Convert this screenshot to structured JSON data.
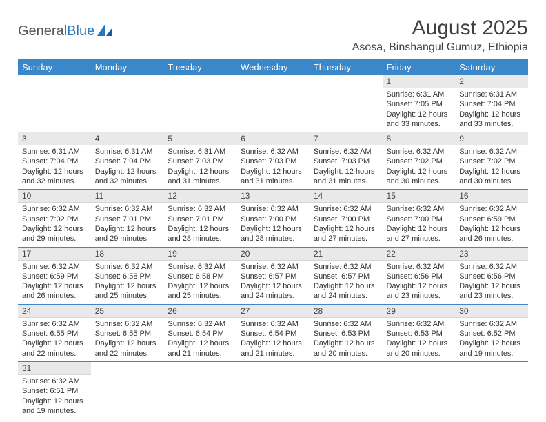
{
  "brand": {
    "name1": "General",
    "name2": "Blue"
  },
  "title": "August 2025",
  "location": "Asosa, Binshangul Gumuz, Ethiopia",
  "colors": {
    "header_bg": "#3a87c9",
    "header_text": "#ffffff",
    "daynum_bg": "#e9e9e9",
    "row_border": "#3a87c9",
    "text": "#333333",
    "brand_blue": "#2876c0"
  },
  "typography": {
    "body_pt": 11,
    "title_pt": 30,
    "location_pt": 16,
    "th_pt": 13
  },
  "weekdays": [
    "Sunday",
    "Monday",
    "Tuesday",
    "Wednesday",
    "Thursday",
    "Friday",
    "Saturday"
  ],
  "weeks": [
    [
      null,
      null,
      null,
      null,
      null,
      {
        "n": "1",
        "sr": "Sunrise: 6:31 AM",
        "ss": "Sunset: 7:05 PM",
        "d1": "Daylight: 12 hours",
        "d2": "and 33 minutes."
      },
      {
        "n": "2",
        "sr": "Sunrise: 6:31 AM",
        "ss": "Sunset: 7:04 PM",
        "d1": "Daylight: 12 hours",
        "d2": "and 33 minutes."
      }
    ],
    [
      {
        "n": "3",
        "sr": "Sunrise: 6:31 AM",
        "ss": "Sunset: 7:04 PM",
        "d1": "Daylight: 12 hours",
        "d2": "and 32 minutes."
      },
      {
        "n": "4",
        "sr": "Sunrise: 6:31 AM",
        "ss": "Sunset: 7:04 PM",
        "d1": "Daylight: 12 hours",
        "d2": "and 32 minutes."
      },
      {
        "n": "5",
        "sr": "Sunrise: 6:31 AM",
        "ss": "Sunset: 7:03 PM",
        "d1": "Daylight: 12 hours",
        "d2": "and 31 minutes."
      },
      {
        "n": "6",
        "sr": "Sunrise: 6:32 AM",
        "ss": "Sunset: 7:03 PM",
        "d1": "Daylight: 12 hours",
        "d2": "and 31 minutes."
      },
      {
        "n": "7",
        "sr": "Sunrise: 6:32 AM",
        "ss": "Sunset: 7:03 PM",
        "d1": "Daylight: 12 hours",
        "d2": "and 31 minutes."
      },
      {
        "n": "8",
        "sr": "Sunrise: 6:32 AM",
        "ss": "Sunset: 7:02 PM",
        "d1": "Daylight: 12 hours",
        "d2": "and 30 minutes."
      },
      {
        "n": "9",
        "sr": "Sunrise: 6:32 AM",
        "ss": "Sunset: 7:02 PM",
        "d1": "Daylight: 12 hours",
        "d2": "and 30 minutes."
      }
    ],
    [
      {
        "n": "10",
        "sr": "Sunrise: 6:32 AM",
        "ss": "Sunset: 7:02 PM",
        "d1": "Daylight: 12 hours",
        "d2": "and 29 minutes."
      },
      {
        "n": "11",
        "sr": "Sunrise: 6:32 AM",
        "ss": "Sunset: 7:01 PM",
        "d1": "Daylight: 12 hours",
        "d2": "and 29 minutes."
      },
      {
        "n": "12",
        "sr": "Sunrise: 6:32 AM",
        "ss": "Sunset: 7:01 PM",
        "d1": "Daylight: 12 hours",
        "d2": "and 28 minutes."
      },
      {
        "n": "13",
        "sr": "Sunrise: 6:32 AM",
        "ss": "Sunset: 7:00 PM",
        "d1": "Daylight: 12 hours",
        "d2": "and 28 minutes."
      },
      {
        "n": "14",
        "sr": "Sunrise: 6:32 AM",
        "ss": "Sunset: 7:00 PM",
        "d1": "Daylight: 12 hours",
        "d2": "and 27 minutes."
      },
      {
        "n": "15",
        "sr": "Sunrise: 6:32 AM",
        "ss": "Sunset: 7:00 PM",
        "d1": "Daylight: 12 hours",
        "d2": "and 27 minutes."
      },
      {
        "n": "16",
        "sr": "Sunrise: 6:32 AM",
        "ss": "Sunset: 6:59 PM",
        "d1": "Daylight: 12 hours",
        "d2": "and 26 minutes."
      }
    ],
    [
      {
        "n": "17",
        "sr": "Sunrise: 6:32 AM",
        "ss": "Sunset: 6:59 PM",
        "d1": "Daylight: 12 hours",
        "d2": "and 26 minutes."
      },
      {
        "n": "18",
        "sr": "Sunrise: 6:32 AM",
        "ss": "Sunset: 6:58 PM",
        "d1": "Daylight: 12 hours",
        "d2": "and 25 minutes."
      },
      {
        "n": "19",
        "sr": "Sunrise: 6:32 AM",
        "ss": "Sunset: 6:58 PM",
        "d1": "Daylight: 12 hours",
        "d2": "and 25 minutes."
      },
      {
        "n": "20",
        "sr": "Sunrise: 6:32 AM",
        "ss": "Sunset: 6:57 PM",
        "d1": "Daylight: 12 hours",
        "d2": "and 24 minutes."
      },
      {
        "n": "21",
        "sr": "Sunrise: 6:32 AM",
        "ss": "Sunset: 6:57 PM",
        "d1": "Daylight: 12 hours",
        "d2": "and 24 minutes."
      },
      {
        "n": "22",
        "sr": "Sunrise: 6:32 AM",
        "ss": "Sunset: 6:56 PM",
        "d1": "Daylight: 12 hours",
        "d2": "and 23 minutes."
      },
      {
        "n": "23",
        "sr": "Sunrise: 6:32 AM",
        "ss": "Sunset: 6:56 PM",
        "d1": "Daylight: 12 hours",
        "d2": "and 23 minutes."
      }
    ],
    [
      {
        "n": "24",
        "sr": "Sunrise: 6:32 AM",
        "ss": "Sunset: 6:55 PM",
        "d1": "Daylight: 12 hours",
        "d2": "and 22 minutes."
      },
      {
        "n": "25",
        "sr": "Sunrise: 6:32 AM",
        "ss": "Sunset: 6:55 PM",
        "d1": "Daylight: 12 hours",
        "d2": "and 22 minutes."
      },
      {
        "n": "26",
        "sr": "Sunrise: 6:32 AM",
        "ss": "Sunset: 6:54 PM",
        "d1": "Daylight: 12 hours",
        "d2": "and 21 minutes."
      },
      {
        "n": "27",
        "sr": "Sunrise: 6:32 AM",
        "ss": "Sunset: 6:54 PM",
        "d1": "Daylight: 12 hours",
        "d2": "and 21 minutes."
      },
      {
        "n": "28",
        "sr": "Sunrise: 6:32 AM",
        "ss": "Sunset: 6:53 PM",
        "d1": "Daylight: 12 hours",
        "d2": "and 20 minutes."
      },
      {
        "n": "29",
        "sr": "Sunrise: 6:32 AM",
        "ss": "Sunset: 6:53 PM",
        "d1": "Daylight: 12 hours",
        "d2": "and 20 minutes."
      },
      {
        "n": "30",
        "sr": "Sunrise: 6:32 AM",
        "ss": "Sunset: 6:52 PM",
        "d1": "Daylight: 12 hours",
        "d2": "and 19 minutes."
      }
    ],
    [
      {
        "n": "31",
        "sr": "Sunrise: 6:32 AM",
        "ss": "Sunset: 6:51 PM",
        "d1": "Daylight: 12 hours",
        "d2": "and 19 minutes."
      },
      null,
      null,
      null,
      null,
      null,
      null
    ]
  ]
}
